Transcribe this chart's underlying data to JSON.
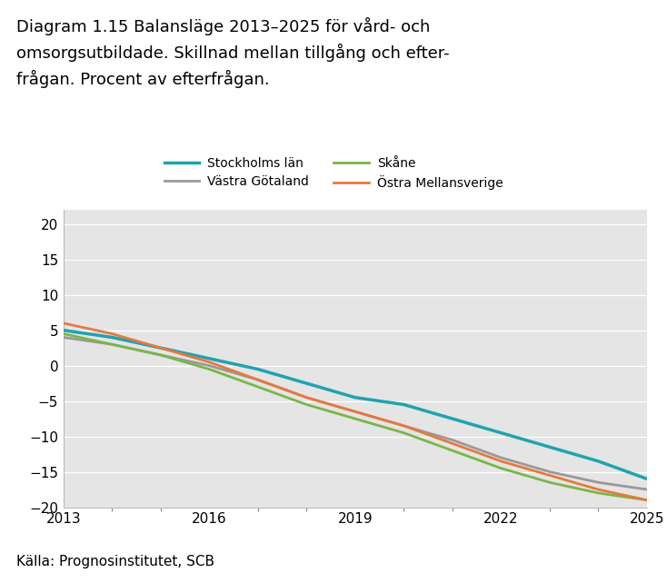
{
  "title_line1": "Diagram 1.15 Balansläge 2013–2025 för vård- och",
  "title_line2": "omsorgsutbildade. Skillnad mellan tillgång och efter-",
  "title_line3": "frågan. Procent av efterfrågan.",
  "source": "Källa: Prognosinstitutet, SCB",
  "title_bg_color": "#cce0ea",
  "plot_bg_color": "#e5e5e5",
  "series": [
    {
      "label": "Stockholms län",
      "color": "#1fa3b0",
      "linewidth": 2.5,
      "x": [
        2013,
        2014,
        2015,
        2016,
        2017,
        2018,
        2019,
        2020,
        2021,
        2022,
        2023,
        2024,
        2025
      ],
      "y": [
        5.0,
        4.0,
        2.5,
        1.0,
        -0.5,
        -2.5,
        -4.5,
        -5.5,
        -7.5,
        -9.5,
        -11.5,
        -13.5,
        -16.0
      ]
    },
    {
      "label": "Västra Götaland",
      "color": "#999999",
      "linewidth": 2.0,
      "x": [
        2013,
        2014,
        2015,
        2016,
        2017,
        2018,
        2019,
        2020,
        2021,
        2022,
        2023,
        2024,
        2025
      ],
      "y": [
        4.0,
        3.0,
        1.5,
        0.0,
        -2.0,
        -4.5,
        -6.5,
        -8.5,
        -10.5,
        -13.0,
        -15.0,
        -16.5,
        -17.5
      ]
    },
    {
      "label": "Skåne",
      "color": "#7ab648",
      "linewidth": 2.0,
      "x": [
        2013,
        2014,
        2015,
        2016,
        2017,
        2018,
        2019,
        2020,
        2021,
        2022,
        2023,
        2024,
        2025
      ],
      "y": [
        4.5,
        3.0,
        1.5,
        -0.5,
        -3.0,
        -5.5,
        -7.5,
        -9.5,
        -12.0,
        -14.5,
        -16.5,
        -18.0,
        -19.0
      ]
    },
    {
      "label": "Östra Mellansverige",
      "color": "#e8783c",
      "linewidth": 2.0,
      "x": [
        2013,
        2014,
        2015,
        2016,
        2017,
        2018,
        2019,
        2020,
        2021,
        2022,
        2023,
        2024,
        2025
      ],
      "y": [
        6.0,
        4.5,
        2.5,
        0.5,
        -2.0,
        -4.5,
        -6.5,
        -8.5,
        -11.0,
        -13.5,
        -15.5,
        -17.5,
        -19.0
      ]
    }
  ],
  "xlim": [
    2013,
    2025
  ],
  "ylim": [
    -20,
    22
  ],
  "yticks": [
    -20,
    -15,
    -10,
    -5,
    0,
    5,
    10,
    15,
    20
  ],
  "xticks": [
    2013,
    2016,
    2019,
    2022,
    2025
  ],
  "minor_xticks": [
    2013,
    2014,
    2015,
    2016,
    2017,
    2018,
    2019,
    2020,
    2021,
    2022,
    2023,
    2024,
    2025
  ],
  "figsize": [
    7.34,
    6.42
  ],
  "dpi": 100
}
